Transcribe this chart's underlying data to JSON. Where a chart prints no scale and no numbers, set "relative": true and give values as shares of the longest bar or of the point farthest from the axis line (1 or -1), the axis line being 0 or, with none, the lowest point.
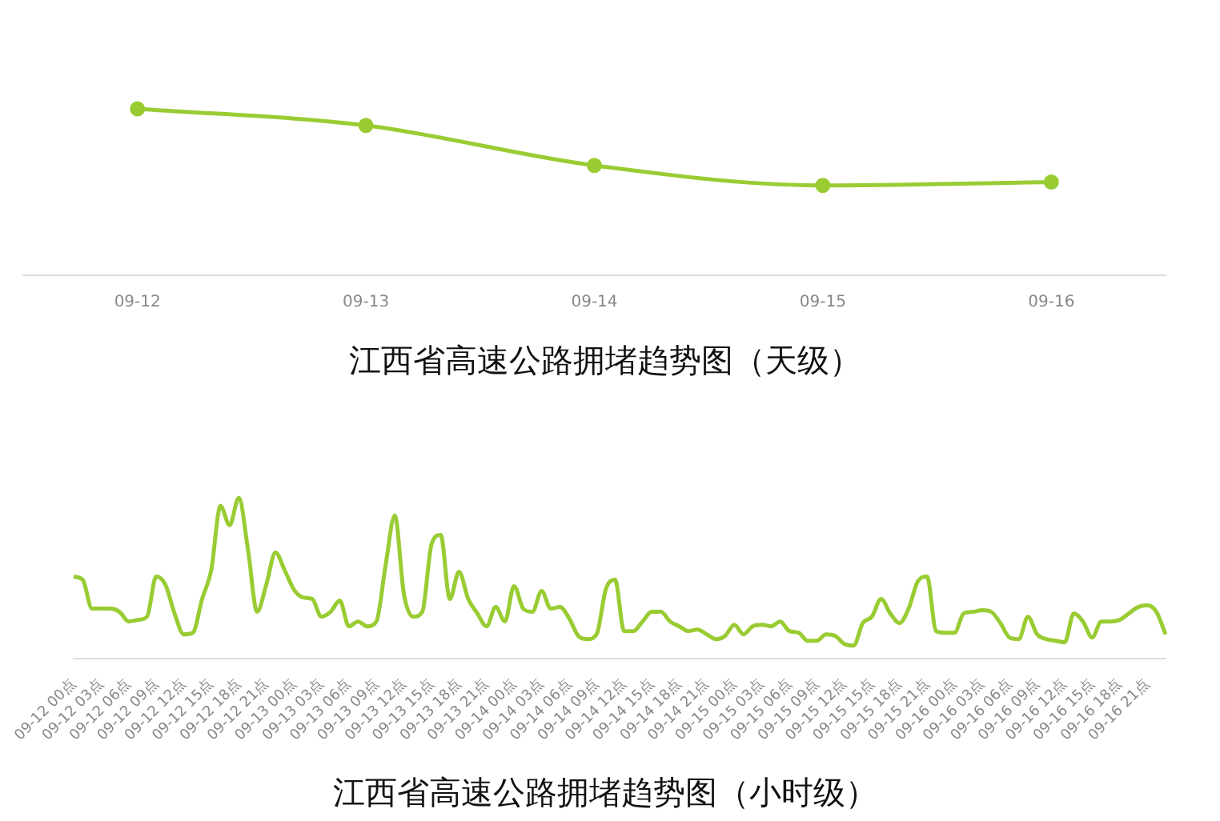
{
  "chart_data": [
    {
      "type": "line",
      "title": "江西省高速公路拥堵趋势图（天级）",
      "categories": [
        "09-12",
        "09-13",
        "09-14",
        "09-15",
        "09-16"
      ],
      "relative": true,
      "grid": false,
      "marker": "circle",
      "legend": false,
      "series": [
        {
          "color": "#99cc33",
          "values": [
            1,
            0.9,
            0.66,
            0.54,
            0.56
          ]
        }
      ]
    },
    {
      "type": "line",
      "title": "江西省高速公路拥堵趋势图（小时级）",
      "categories": [
        "09-12 00点",
        null,
        null,
        "09-12 03点",
        null,
        null,
        "09-12 06点",
        null,
        null,
        "09-12 09点",
        null,
        null,
        "09-12 12点",
        null,
        null,
        "09-12 15点",
        null,
        null,
        "09-12 18点",
        null,
        null,
        "09-12 21点",
        null,
        null,
        "09-13 00点",
        null,
        null,
        "09-13 03点",
        null,
        null,
        "09-13 06点",
        null,
        null,
        "09-13 09点",
        null,
        null,
        "09-13 12点",
        null,
        null,
        "09-13 15点",
        null,
        null,
        "09-13 18点",
        null,
        null,
        "09-13 21点",
        null,
        null,
        "09-14 00点",
        null,
        null,
        "09-14 03点",
        null,
        null,
        "09-14 06点",
        null,
        null,
        "09-14 09点",
        null,
        null,
        "09-14 12点",
        null,
        null,
        "09-14 15点",
        null,
        null,
        "09-14 18点",
        null,
        null,
        "09-14 21点",
        null,
        null,
        "09-15 00点",
        null,
        null,
        "09-15 03点",
        null,
        null,
        "09-15 06点",
        null,
        null,
        "09-15 09点",
        null,
        null,
        "09-15 12点",
        null,
        null,
        "09-15 15点",
        null,
        null,
        "09-15 18点",
        null,
        null,
        "09-15 21点",
        null,
        null,
        "09-16 00点",
        null,
        null,
        "09-16 03点",
        null,
        null,
        "09-16 06点",
        null,
        null,
        "09-16 09点",
        null,
        null,
        "09-16 12点",
        null,
        null,
        "09-16 15点",
        null,
        null,
        "09-16 18点",
        null,
        null,
        "09-16 21点",
        null,
        null
      ],
      "relative": true,
      "grid": false,
      "marker": "none",
      "legend": false,
      "series": [
        {
          "color": "#99cc33",
          "values": [
            0.51,
            0.49,
            0.31,
            0.31,
            0.31,
            0.29,
            0.23,
            0.24,
            0.26,
            0.51,
            0.46,
            0.28,
            0.15,
            0.16,
            0.37,
            0.55,
            0.95,
            0.83,
            1,
            0.68,
            0.29,
            0.46,
            0.66,
            0.55,
            0.43,
            0.38,
            0.37,
            0.26,
            0.29,
            0.36,
            0.2,
            0.23,
            0.2,
            0.23,
            0.58,
            0.89,
            0.4,
            0.26,
            0.29,
            0.71,
            0.77,
            0.37,
            0.54,
            0.37,
            0.28,
            0.2,
            0.32,
            0.23,
            0.45,
            0.31,
            0.29,
            0.42,
            0.31,
            0.32,
            0.25,
            0.14,
            0.12,
            0.15,
            0.43,
            0.49,
            0.17,
            0.17,
            0.23,
            0.29,
            0.29,
            0.23,
            0.2,
            0.17,
            0.18,
            0.15,
            0.12,
            0.14,
            0.21,
            0.15,
            0.2,
            0.21,
            0.2,
            0.23,
            0.17,
            0.16,
            0.11,
            0.11,
            0.15,
            0.14,
            0.09,
            0.08,
            0.22,
            0.26,
            0.37,
            0.28,
            0.22,
            0.31,
            0.48,
            0.51,
            0.17,
            0.16,
            0.16,
            0.28,
            0.29,
            0.3,
            0.29,
            0.22,
            0.13,
            0.12,
            0.26,
            0.15,
            0.12,
            0.11,
            0.1,
            0.28,
            0.23,
            0.13,
            0.23,
            0.23,
            0.24,
            0.28,
            0.32,
            0.33,
            0.29,
            0.15
          ]
        }
      ]
    }
  ]
}
